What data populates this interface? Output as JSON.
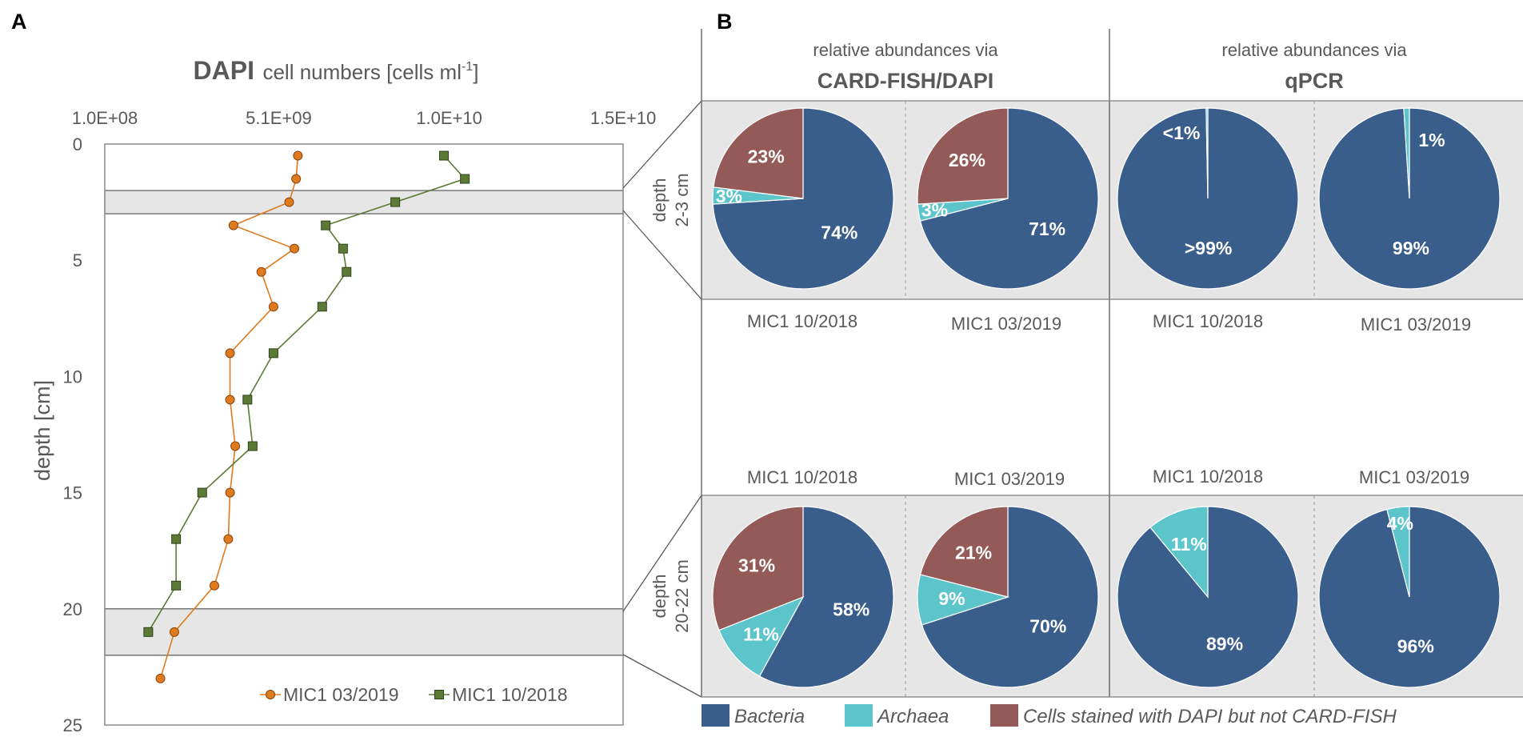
{
  "panels": {
    "a": "A",
    "b": "B"
  },
  "chart_data": [
    {
      "type": "line",
      "title_bold": "DAPI",
      "title_rest": "cell numbers [cells ml",
      "title_sup": "-1",
      "title_close": "]",
      "xlabel": "DAPI cell numbers [cells ml-1]",
      "ylabel": "depth [cm]",
      "xlim": [
        100000000,
        15000000000
      ],
      "ylim": [
        0,
        25
      ],
      "x_ticks": [
        100000000,
        5100000000,
        10000000000,
        15000000000
      ],
      "x_tick_labels": [
        "1.0E+08",
        "5.1E+09",
        "1.0E+10",
        "1.5E+10"
      ],
      "y_ticks": [
        0,
        5,
        10,
        15,
        20,
        25
      ],
      "y_tick_labels": [
        "0",
        "5",
        "10",
        "15",
        "20",
        "25"
      ],
      "highlight_bands": [
        [
          2,
          3
        ],
        [
          20,
          22
        ]
      ],
      "legend": [
        "MIC1 03/2019",
        "MIC1 10/2018"
      ],
      "series": [
        {
          "name": "MIC1 03/2019",
          "color": "#E07A1F",
          "marker": "circle",
          "x": [
            5650000000,
            5600000000,
            5400000000,
            3800000000,
            5550000000,
            4600000000,
            4950000000,
            3700000000,
            3700000000,
            3850000000,
            3700000000,
            3650000000,
            3250000000,
            2100000000,
            1700000000
          ],
          "y": [
            0.5,
            1.5,
            2.5,
            3.5,
            4.5,
            5.5,
            7,
            9,
            11,
            13,
            15,
            17,
            19,
            21,
            23
          ]
        },
        {
          "name": "MIC1 10/2018",
          "color": "#5C7A35",
          "marker": "square",
          "x": [
            9850000000,
            10450000000,
            8450000000,
            6450000000,
            6950000000,
            7050000000,
            6350000000,
            4950000000,
            4200000000,
            4350000000,
            2900000000,
            2150000000,
            2150000000,
            1350000000
          ],
          "y": [
            0.5,
            1.5,
            2.5,
            3.5,
            4.5,
            5.5,
            7,
            9,
            11,
            13,
            15,
            17,
            19,
            21
          ]
        }
      ]
    },
    {
      "type": "pie",
      "group_headers": [
        {
          "line1": "relative abundances via",
          "line2": "CARD-FISH/DAPI"
        },
        {
          "line1": "relative abundances via",
          "line2": "qPCR"
        }
      ],
      "depth_labels": [
        {
          "line1": "depth",
          "line2": "2-3 cm"
        },
        {
          "line1": "depth",
          "line2": "20-22 cm"
        }
      ],
      "categories": [
        "Bacteria",
        "Archaea",
        "Cells stained with DAPI but not CARD-FISH"
      ],
      "colors": {
        "Bacteria": "#3A5E8C",
        "Archaea": "#5CC5CC",
        "Unstained": "#935A58"
      },
      "pies": [
        {
          "row": "2-3 cm",
          "sample": "MIC1 10/2018",
          "method": "CARD-FISH/DAPI",
          "values": [
            74,
            3,
            23
          ],
          "labels": [
            "74%",
            "3%",
            "23%"
          ]
        },
        {
          "row": "2-3 cm",
          "sample": "MIC1 03/2019",
          "method": "CARD-FISH/DAPI",
          "values": [
            71,
            3,
            26
          ],
          "labels": [
            "71%",
            "3%",
            "26%"
          ]
        },
        {
          "row": "2-3 cm",
          "sample": "MIC1 10/2018",
          "method": "qPCR",
          "values": [
            99.7,
            0.3
          ],
          "labels": [
            ">99%",
            "<1%"
          ]
        },
        {
          "row": "2-3 cm",
          "sample": "MIC1 03/2019",
          "method": "qPCR",
          "values": [
            99,
            1
          ],
          "labels": [
            "99%",
            "1%"
          ]
        },
        {
          "row": "20-22 cm",
          "sample": "MIC1 10/2018",
          "method": "CARD-FISH/DAPI",
          "values": [
            58,
            11,
            31
          ],
          "labels": [
            "58%",
            "11%",
            "31%"
          ]
        },
        {
          "row": "20-22 cm",
          "sample": "MIC1 03/2019",
          "method": "CARD-FISH/DAPI",
          "values": [
            70,
            9,
            21
          ],
          "labels": [
            "70%",
            "9%",
            "21%"
          ]
        },
        {
          "row": "20-22 cm",
          "sample": "MIC1 10/2018",
          "method": "qPCR",
          "values": [
            89,
            11
          ],
          "labels": [
            "89%",
            "11%"
          ]
        },
        {
          "row": "20-22 cm",
          "sample": "MIC1 03/2019",
          "method": "qPCR",
          "values": [
            96,
            4
          ],
          "labels": [
            "96%",
            "4%"
          ]
        }
      ],
      "sample_labels_top": [
        "MIC1 10/2018",
        "MIC1 03/2019",
        "MIC1 10/2018",
        "MIC1 03/2019"
      ],
      "sample_labels_bottom": [
        "MIC1 10/2018",
        "MIC1 03/2019",
        "MIC1 10/2018",
        "MIC1 03/2019"
      ],
      "legend": [
        "Bacteria",
        "Archaea",
        "Cells stained with DAPI but not CARD-FISH"
      ]
    }
  ]
}
